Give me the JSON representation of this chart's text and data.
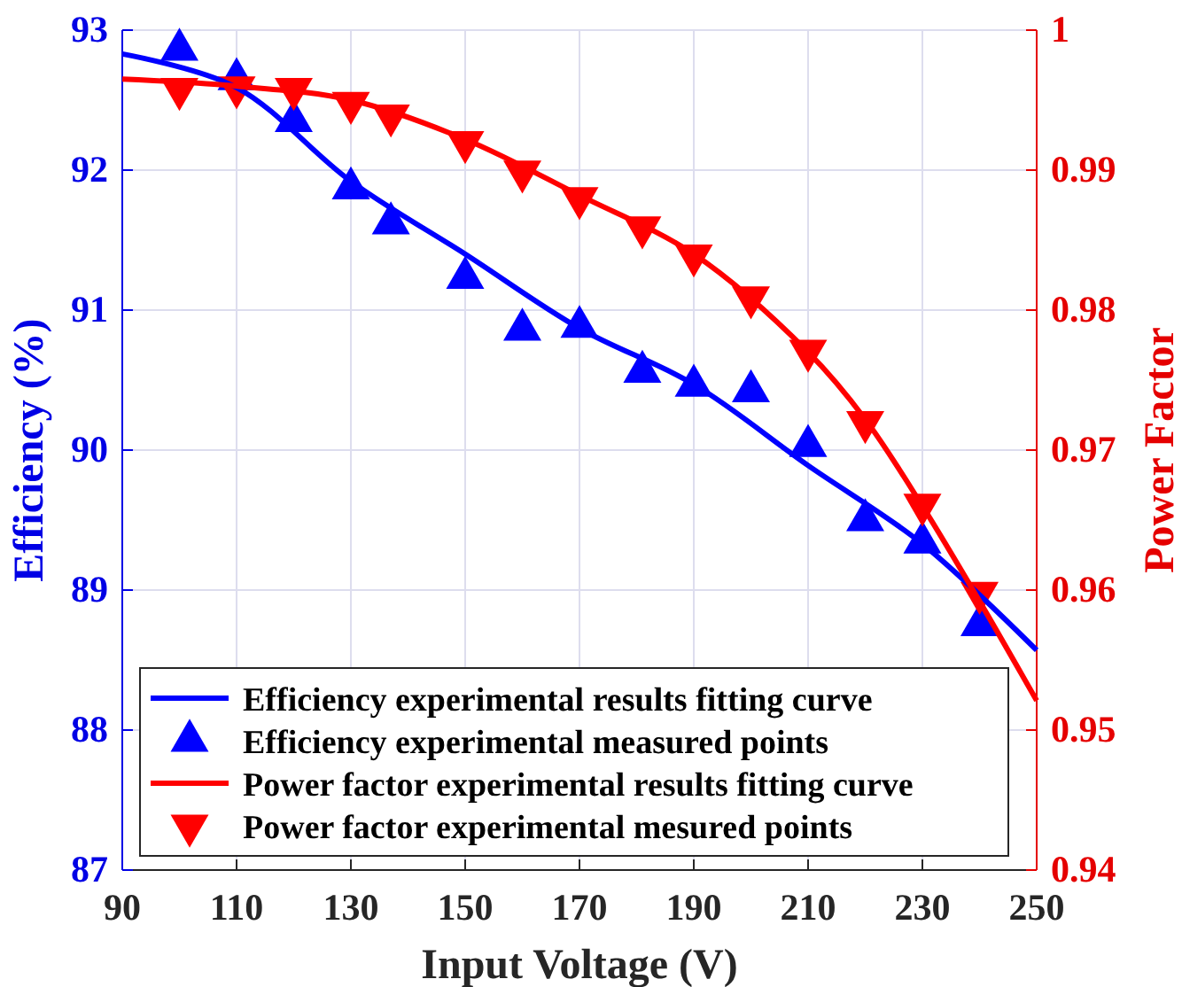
{
  "chart_data": {
    "type": "line",
    "xlabel": "Input Voltage (V)",
    "ylabel": "Efficiency (%)",
    "y2label": "Power Factor",
    "xlim": [
      90,
      250
    ],
    "xticks": [
      90,
      110,
      130,
      150,
      170,
      190,
      210,
      230,
      250
    ],
    "ylim": [
      87,
      93
    ],
    "yticks": [
      87,
      88,
      89,
      90,
      91,
      92,
      93
    ],
    "y2lim": [
      0.94,
      1
    ],
    "y2ticks": [
      0.94,
      0.95,
      0.96,
      0.97,
      0.98,
      0.99,
      {
        "value": 1,
        "label": "1"
      }
    ],
    "grid": true,
    "legend": "bottom left",
    "series": [
      {
        "name": "Efficiency experimental results fitting curve",
        "color": "#0000ff",
        "marker": "none",
        "x": [
          90,
          110,
          130,
          150,
          170,
          190,
          210,
          230,
          250
        ],
        "values": [
          92.83,
          92.59,
          91.92,
          91.4,
          90.87,
          90.47,
          89.89,
          89.33,
          88.57
        ]
      },
      {
        "name": "Efficiency experimental measured points",
        "type": "scatter",
        "color": "#0000ff",
        "marker": "triangle",
        "x": [
          100,
          110,
          120,
          130,
          137,
          150,
          160,
          170,
          181,
          190,
          200,
          210,
          220,
          230,
          240
        ],
        "values": [
          92.86,
          92.65,
          92.35,
          91.87,
          91.62,
          91.23,
          90.86,
          90.88,
          90.56,
          90.46,
          90.42,
          90.03,
          89.5,
          89.34,
          88.75
        ]
      },
      {
        "name": "Power factor experimental results fitting curve",
        "axis": "y2",
        "color": "#ff0000",
        "marker": "none",
        "x": [
          90,
          110,
          130,
          150,
          170,
          190,
          210,
          220,
          230,
          240,
          250
        ],
        "values": [
          0.9965,
          0.996,
          0.995,
          0.9922,
          0.9882,
          0.984,
          0.977,
          0.9722,
          0.966,
          0.9592,
          0.9521
        ]
      },
      {
        "name": "Power factor experimental mesured points",
        "type": "scatter",
        "axis": "y2",
        "color": "#ff0000",
        "marker": "triangle-down",
        "x": [
          100,
          110,
          120,
          130,
          137,
          150,
          160,
          170,
          181,
          190,
          200,
          210,
          220,
          230,
          240
        ],
        "values": [
          0.9958,
          0.9959,
          0.9958,
          0.9948,
          0.9939,
          0.992,
          0.9899,
          0.988,
          0.9859,
          0.9839,
          0.9809,
          0.9771,
          0.972,
          0.9661,
          0.9598
        ]
      }
    ]
  }
}
